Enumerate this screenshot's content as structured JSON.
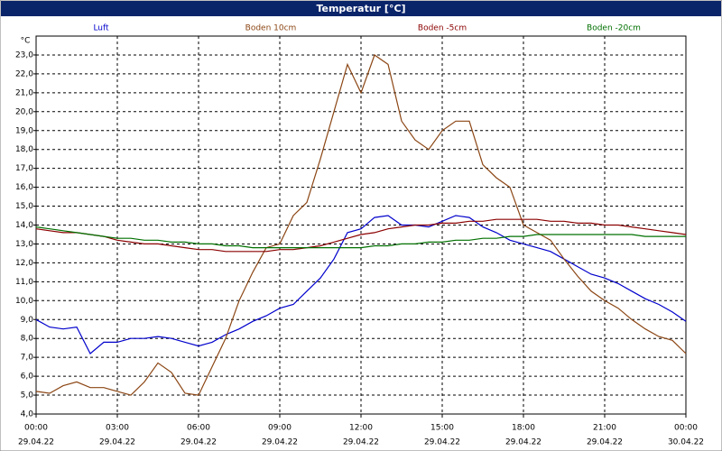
{
  "chart_data": {
    "type": "line",
    "title": "Temperatur [°C]",
    "y_unit": "°C",
    "x": [
      0,
      0.5,
      1,
      1.5,
      2,
      2.5,
      3,
      3.5,
      4,
      4.5,
      5,
      5.5,
      6,
      6.5,
      7,
      7.5,
      8,
      8.5,
      9,
      9.5,
      10,
      10.5,
      11,
      11.5,
      12,
      12.5,
      13,
      13.5,
      14,
      14.5,
      15,
      15.5,
      16,
      16.5,
      17,
      17.5,
      18,
      18.5,
      19,
      19.5,
      20,
      20.5,
      21,
      21.5,
      22,
      22.5,
      23,
      23.5,
      24
    ],
    "xlim": [
      0,
      24
    ],
    "xticks": [
      {
        "value": 0,
        "label": "00:00"
      },
      {
        "value": 3,
        "label": "03:00"
      },
      {
        "value": 6,
        "label": "06:00"
      },
      {
        "value": 9,
        "label": "09:00"
      },
      {
        "value": 12,
        "label": "12:00"
      },
      {
        "value": 15,
        "label": "15:00"
      },
      {
        "value": 18,
        "label": "18:00"
      },
      {
        "value": 21,
        "label": "21:00"
      },
      {
        "value": 24,
        "label": "00:00"
      }
    ],
    "xtick_dates": [
      "29.04.22",
      "29.04.22",
      "29.04.22",
      "29.04.22",
      "29.04.22",
      "29.04.22",
      "29.04.22",
      "29.04.22",
      "30.04.22"
    ],
    "ylim": [
      4,
      24
    ],
    "yticks": [
      {
        "value": 4,
        "label": "4,0"
      },
      {
        "value": 5,
        "label": "5,0"
      },
      {
        "value": 6,
        "label": "6,0"
      },
      {
        "value": 7,
        "label": "7,0"
      },
      {
        "value": 8,
        "label": "8,0"
      },
      {
        "value": 9,
        "label": "9,0"
      },
      {
        "value": 10,
        "label": "10,0"
      },
      {
        "value": 11,
        "label": "11,0"
      },
      {
        "value": 12,
        "label": "12,0"
      },
      {
        "value": 13,
        "label": "13,0"
      },
      {
        "value": 14,
        "label": "14,0"
      },
      {
        "value": 15,
        "label": "15,0"
      },
      {
        "value": 16,
        "label": "16,0"
      },
      {
        "value": 17,
        "label": "17,0"
      },
      {
        "value": 18,
        "label": "18,0"
      },
      {
        "value": 19,
        "label": "19,0"
      },
      {
        "value": 20,
        "label": "20,0"
      },
      {
        "value": 21,
        "label": "21,0"
      },
      {
        "value": 22,
        "label": "22,0"
      },
      {
        "value": 23,
        "label": "23,0"
      }
    ],
    "grid": true,
    "series": [
      {
        "name": "Luft",
        "color": "#0000cc",
        "values": [
          9.0,
          8.6,
          8.5,
          8.6,
          7.2,
          7.8,
          7.8,
          8.0,
          8.0,
          8.1,
          8.0,
          7.8,
          7.6,
          7.8,
          8.2,
          8.5,
          8.9,
          9.2,
          9.6,
          9.8,
          10.5,
          11.2,
          12.2,
          13.6,
          13.8,
          14.4,
          14.5,
          14.0,
          14.0,
          13.9,
          14.2,
          14.5,
          14.4,
          13.9,
          13.6,
          13.2,
          13.0,
          12.8,
          12.6,
          12.2,
          11.8,
          11.4,
          11.2,
          10.9,
          10.5,
          10.1,
          9.8,
          9.4,
          8.9
        ]
      },
      {
        "name": "Boden 10cm",
        "color": "#8b4513",
        "values": [
          5.2,
          5.1,
          5.5,
          5.7,
          5.4,
          5.4,
          5.2,
          5.0,
          5.7,
          6.7,
          6.2,
          5.1,
          5.0,
          6.5,
          8.0,
          10.0,
          11.5,
          12.8,
          13.0,
          14.5,
          15.2,
          17.5,
          20.0,
          22.5,
          21.0,
          23.0,
          22.5,
          19.5,
          18.5,
          18.0,
          19.0,
          19.5,
          19.5,
          17.2,
          16.5,
          16.0,
          14.0,
          13.6,
          13.2,
          12.2,
          11.3,
          10.5,
          10.0,
          9.6,
          9.0,
          8.5,
          8.1,
          7.9,
          7.2
        ]
      },
      {
        "name": "Boden -5cm",
        "color": "#8b0000",
        "values": [
          13.8,
          13.7,
          13.6,
          13.6,
          13.5,
          13.4,
          13.2,
          13.1,
          13.0,
          13.0,
          12.9,
          12.8,
          12.7,
          12.7,
          12.6,
          12.6,
          12.6,
          12.6,
          12.7,
          12.7,
          12.8,
          12.9,
          13.1,
          13.3,
          13.5,
          13.6,
          13.8,
          13.9,
          14.0,
          14.0,
          14.1,
          14.1,
          14.2,
          14.2,
          14.3,
          14.3,
          14.3,
          14.3,
          14.2,
          14.2,
          14.1,
          14.1,
          14.0,
          14.0,
          13.9,
          13.8,
          13.7,
          13.6,
          13.5
        ]
      },
      {
        "name": "Boden -20cm",
        "color": "#007000",
        "values": [
          13.9,
          13.8,
          13.7,
          13.6,
          13.5,
          13.4,
          13.3,
          13.3,
          13.2,
          13.2,
          13.1,
          13.1,
          13.0,
          13.0,
          12.9,
          12.9,
          12.8,
          12.8,
          12.8,
          12.8,
          12.8,
          12.8,
          12.8,
          12.8,
          12.8,
          12.9,
          12.9,
          13.0,
          13.0,
          13.1,
          13.1,
          13.2,
          13.2,
          13.3,
          13.3,
          13.4,
          13.4,
          13.5,
          13.5,
          13.5,
          13.5,
          13.5,
          13.5,
          13.5,
          13.5,
          13.4,
          13.4,
          13.4,
          13.4
        ]
      }
    ]
  }
}
